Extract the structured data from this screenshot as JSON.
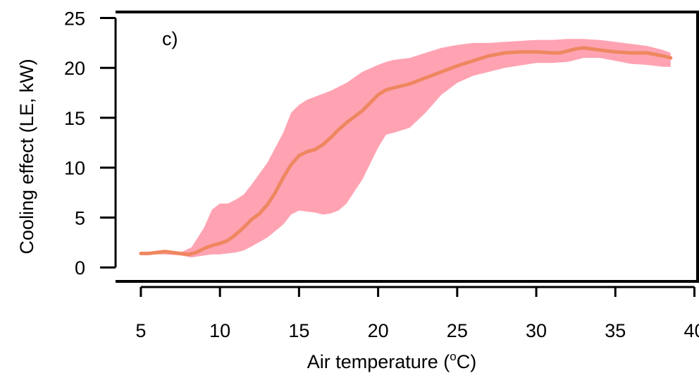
{
  "chart_data": {
    "type": "area",
    "panel_label": "c)",
    "xlabel": "Air temperature (°C)",
    "xlabel_parts": {
      "pre": "Air temperature (",
      "sup": "o",
      "post": "C)"
    },
    "ylabel": "Cooling effect (LE, kW)",
    "xlim": [
      3.4,
      40.2
    ],
    "ylim": [
      -1.4,
      25.6
    ],
    "x_ticks": [
      5,
      10,
      15,
      20,
      25,
      30,
      35,
      40
    ],
    "x_tick_labels": [
      "5",
      "10",
      "15",
      "20",
      "25",
      "30",
      "35",
      "40"
    ],
    "y_ticks": [
      0,
      5,
      10,
      15,
      20,
      25
    ],
    "y_tick_labels": [
      "0",
      "5",
      "10",
      "15",
      "20",
      "25"
    ],
    "grid": false,
    "colors": {
      "band": "#FFA3B3",
      "line": "#EE8760"
    },
    "series": [
      {
        "role": "uncertainty-band",
        "x": [
          5,
          6.5,
          7.5,
          8.2,
          9,
          9.5,
          10,
          10.5,
          11,
          11.5,
          12,
          13,
          14,
          14.5,
          15,
          15.5,
          16,
          16.5,
          17,
          17.5,
          18,
          19,
          20,
          20.5,
          21,
          22,
          23,
          24,
          25,
          26,
          27,
          28,
          30,
          31,
          32,
          33,
          34,
          35,
          36,
          37,
          38,
          38.5
        ],
        "upper": [
          1.4,
          1.6,
          1.5,
          2.0,
          4.0,
          5.8,
          6.4,
          6.4,
          6.8,
          7.3,
          8.3,
          10.5,
          13.5,
          15.5,
          16.3,
          16.8,
          17.1,
          17.4,
          17.7,
          18.1,
          18.5,
          19.6,
          20.3,
          20.6,
          20.8,
          21.0,
          21.5,
          22.0,
          22.3,
          22.5,
          22.5,
          22.6,
          22.8,
          22.8,
          22.9,
          22.9,
          22.8,
          22.6,
          22.4,
          22.2,
          21.8,
          21.5
        ],
        "lower": [
          1.3,
          1.3,
          1.2,
          1.0,
          1.2,
          1.3,
          1.3,
          1.4,
          1.5,
          1.7,
          2.1,
          3.0,
          4.3,
          5.3,
          5.7,
          5.6,
          5.5,
          5.3,
          5.4,
          5.7,
          6.4,
          8.8,
          12.0,
          13.3,
          13.5,
          14.0,
          15.5,
          17.3,
          18.5,
          19.2,
          19.6,
          20.0,
          20.5,
          20.5,
          20.6,
          21.0,
          21.0,
          20.7,
          20.4,
          20.3,
          20.1,
          20.1
        ]
      },
      {
        "role": "mean-line",
        "x": [
          5,
          5.5,
          6,
          6.5,
          7,
          7.5,
          8,
          8.5,
          9,
          9.5,
          10,
          10.5,
          11,
          11.5,
          12,
          12.5,
          13,
          13.5,
          14,
          14.5,
          15,
          15.5,
          16,
          16.5,
          17,
          17.5,
          18,
          19,
          20,
          20.5,
          21,
          22,
          23,
          24,
          25,
          26,
          27,
          28,
          29,
          30,
          31,
          31.5,
          32,
          32.5,
          33,
          34,
          35,
          36,
          37,
          38,
          38.5
        ],
        "y": [
          1.4,
          1.4,
          1.5,
          1.6,
          1.5,
          1.4,
          1.3,
          1.5,
          1.9,
          2.2,
          2.4,
          2.7,
          3.3,
          4.0,
          4.8,
          5.4,
          6.3,
          7.5,
          9.0,
          10.3,
          11.2,
          11.6,
          11.8,
          12.3,
          13.0,
          13.8,
          14.5,
          15.7,
          17.3,
          17.8,
          18.0,
          18.4,
          19.0,
          19.6,
          20.2,
          20.7,
          21.2,
          21.5,
          21.6,
          21.6,
          21.5,
          21.5,
          21.7,
          21.9,
          22.0,
          21.8,
          21.6,
          21.5,
          21.5,
          21.2,
          21.0
        ]
      }
    ]
  }
}
